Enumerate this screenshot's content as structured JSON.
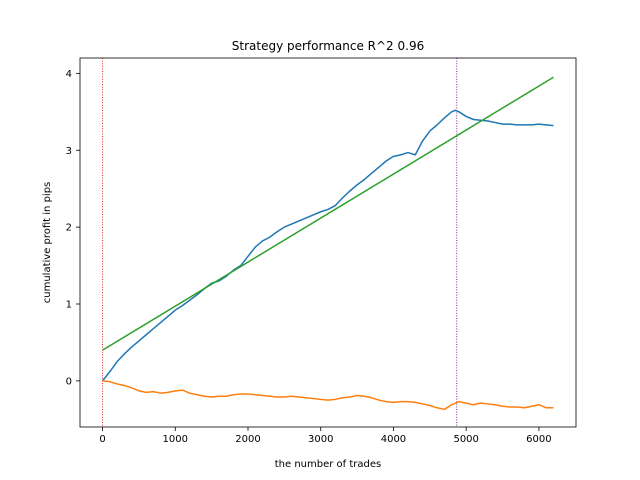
{
  "chart_data": {
    "type": "line",
    "title": "Strategy performance R^2 0.96",
    "xlabel": "the number of trades",
    "ylabel": "cumulative profit in pips",
    "xlim": [
      -310,
      6510
    ],
    "ylim": [
      -0.6,
      4.2
    ],
    "xticks": [
      0,
      1000,
      2000,
      3000,
      4000,
      5000,
      6000
    ],
    "yticks": [
      0,
      1,
      2,
      3,
      4
    ],
    "grid": false,
    "series": [
      {
        "color": "#1f77b4",
        "x": [
          0,
          100,
          200,
          300,
          400,
          500,
          600,
          700,
          800,
          900,
          1000,
          1100,
          1200,
          1300,
          1400,
          1500,
          1600,
          1700,
          1800,
          1900,
          2000,
          2100,
          2200,
          2300,
          2400,
          2500,
          2600,
          2700,
          2800,
          2900,
          3000,
          3100,
          3200,
          3300,
          3400,
          3500,
          3600,
          3700,
          3800,
          3900,
          4000,
          4100,
          4200,
          4300,
          4400,
          4500,
          4600,
          4700,
          4800,
          4850,
          4900,
          5000,
          5100,
          5200,
          5300,
          5400,
          5500,
          5600,
          5700,
          5800,
          5900,
          6000,
          6100,
          6200
        ],
        "y": [
          0.0,
          0.12,
          0.25,
          0.35,
          0.44,
          0.52,
          0.6,
          0.68,
          0.76,
          0.84,
          0.92,
          0.98,
          1.05,
          1.12,
          1.2,
          1.27,
          1.3,
          1.36,
          1.44,
          1.5,
          1.62,
          1.74,
          1.82,
          1.87,
          1.94,
          2.0,
          2.04,
          2.08,
          2.12,
          2.16,
          2.2,
          2.23,
          2.28,
          2.38,
          2.47,
          2.55,
          2.62,
          2.7,
          2.78,
          2.86,
          2.92,
          2.94,
          2.97,
          2.94,
          3.12,
          3.25,
          3.33,
          3.42,
          3.5,
          3.52,
          3.5,
          3.44,
          3.4,
          3.39,
          3.38,
          3.36,
          3.34,
          3.34,
          3.33,
          3.33,
          3.33,
          3.34,
          3.33,
          3.32
        ]
      },
      {
        "color": "#ff7f0e",
        "x": [
          0,
          100,
          200,
          300,
          400,
          500,
          600,
          700,
          800,
          900,
          1000,
          1100,
          1200,
          1300,
          1400,
          1500,
          1600,
          1700,
          1800,
          1900,
          2000,
          2100,
          2200,
          2300,
          2400,
          2500,
          2600,
          2700,
          2800,
          2900,
          3000,
          3100,
          3200,
          3300,
          3400,
          3500,
          3600,
          3700,
          3800,
          3900,
          4000,
          4100,
          4200,
          4300,
          4400,
          4500,
          4600,
          4700,
          4800,
          4850,
          4900,
          5000,
          5100,
          5200,
          5300,
          5400,
          5500,
          5600,
          5700,
          5800,
          5900,
          6000,
          6100,
          6200
        ],
        "y": [
          0.0,
          -0.01,
          -0.04,
          -0.06,
          -0.09,
          -0.13,
          -0.15,
          -0.14,
          -0.16,
          -0.15,
          -0.13,
          -0.12,
          -0.16,
          -0.18,
          -0.2,
          -0.21,
          -0.2,
          -0.2,
          -0.18,
          -0.17,
          -0.17,
          -0.18,
          -0.19,
          -0.2,
          -0.21,
          -0.21,
          -0.2,
          -0.21,
          -0.22,
          -0.23,
          -0.24,
          -0.25,
          -0.24,
          -0.22,
          -0.21,
          -0.19,
          -0.2,
          -0.22,
          -0.25,
          -0.27,
          -0.28,
          -0.27,
          -0.27,
          -0.28,
          -0.3,
          -0.32,
          -0.35,
          -0.37,
          -0.31,
          -0.29,
          -0.27,
          -0.29,
          -0.31,
          -0.29,
          -0.3,
          -0.31,
          -0.33,
          -0.34,
          -0.34,
          -0.35,
          -0.33,
          -0.31,
          -0.35,
          -0.35
        ]
      },
      {
        "color": "#2ca02c",
        "x": [
          0,
          6200
        ],
        "y": [
          0.4,
          3.95
        ]
      }
    ],
    "vlines": [
      {
        "x": 0,
        "color": "#d62728",
        "style": "dotted"
      },
      {
        "x": 4870,
        "color": "#7b2d8e",
        "style": "dotted"
      }
    ]
  }
}
